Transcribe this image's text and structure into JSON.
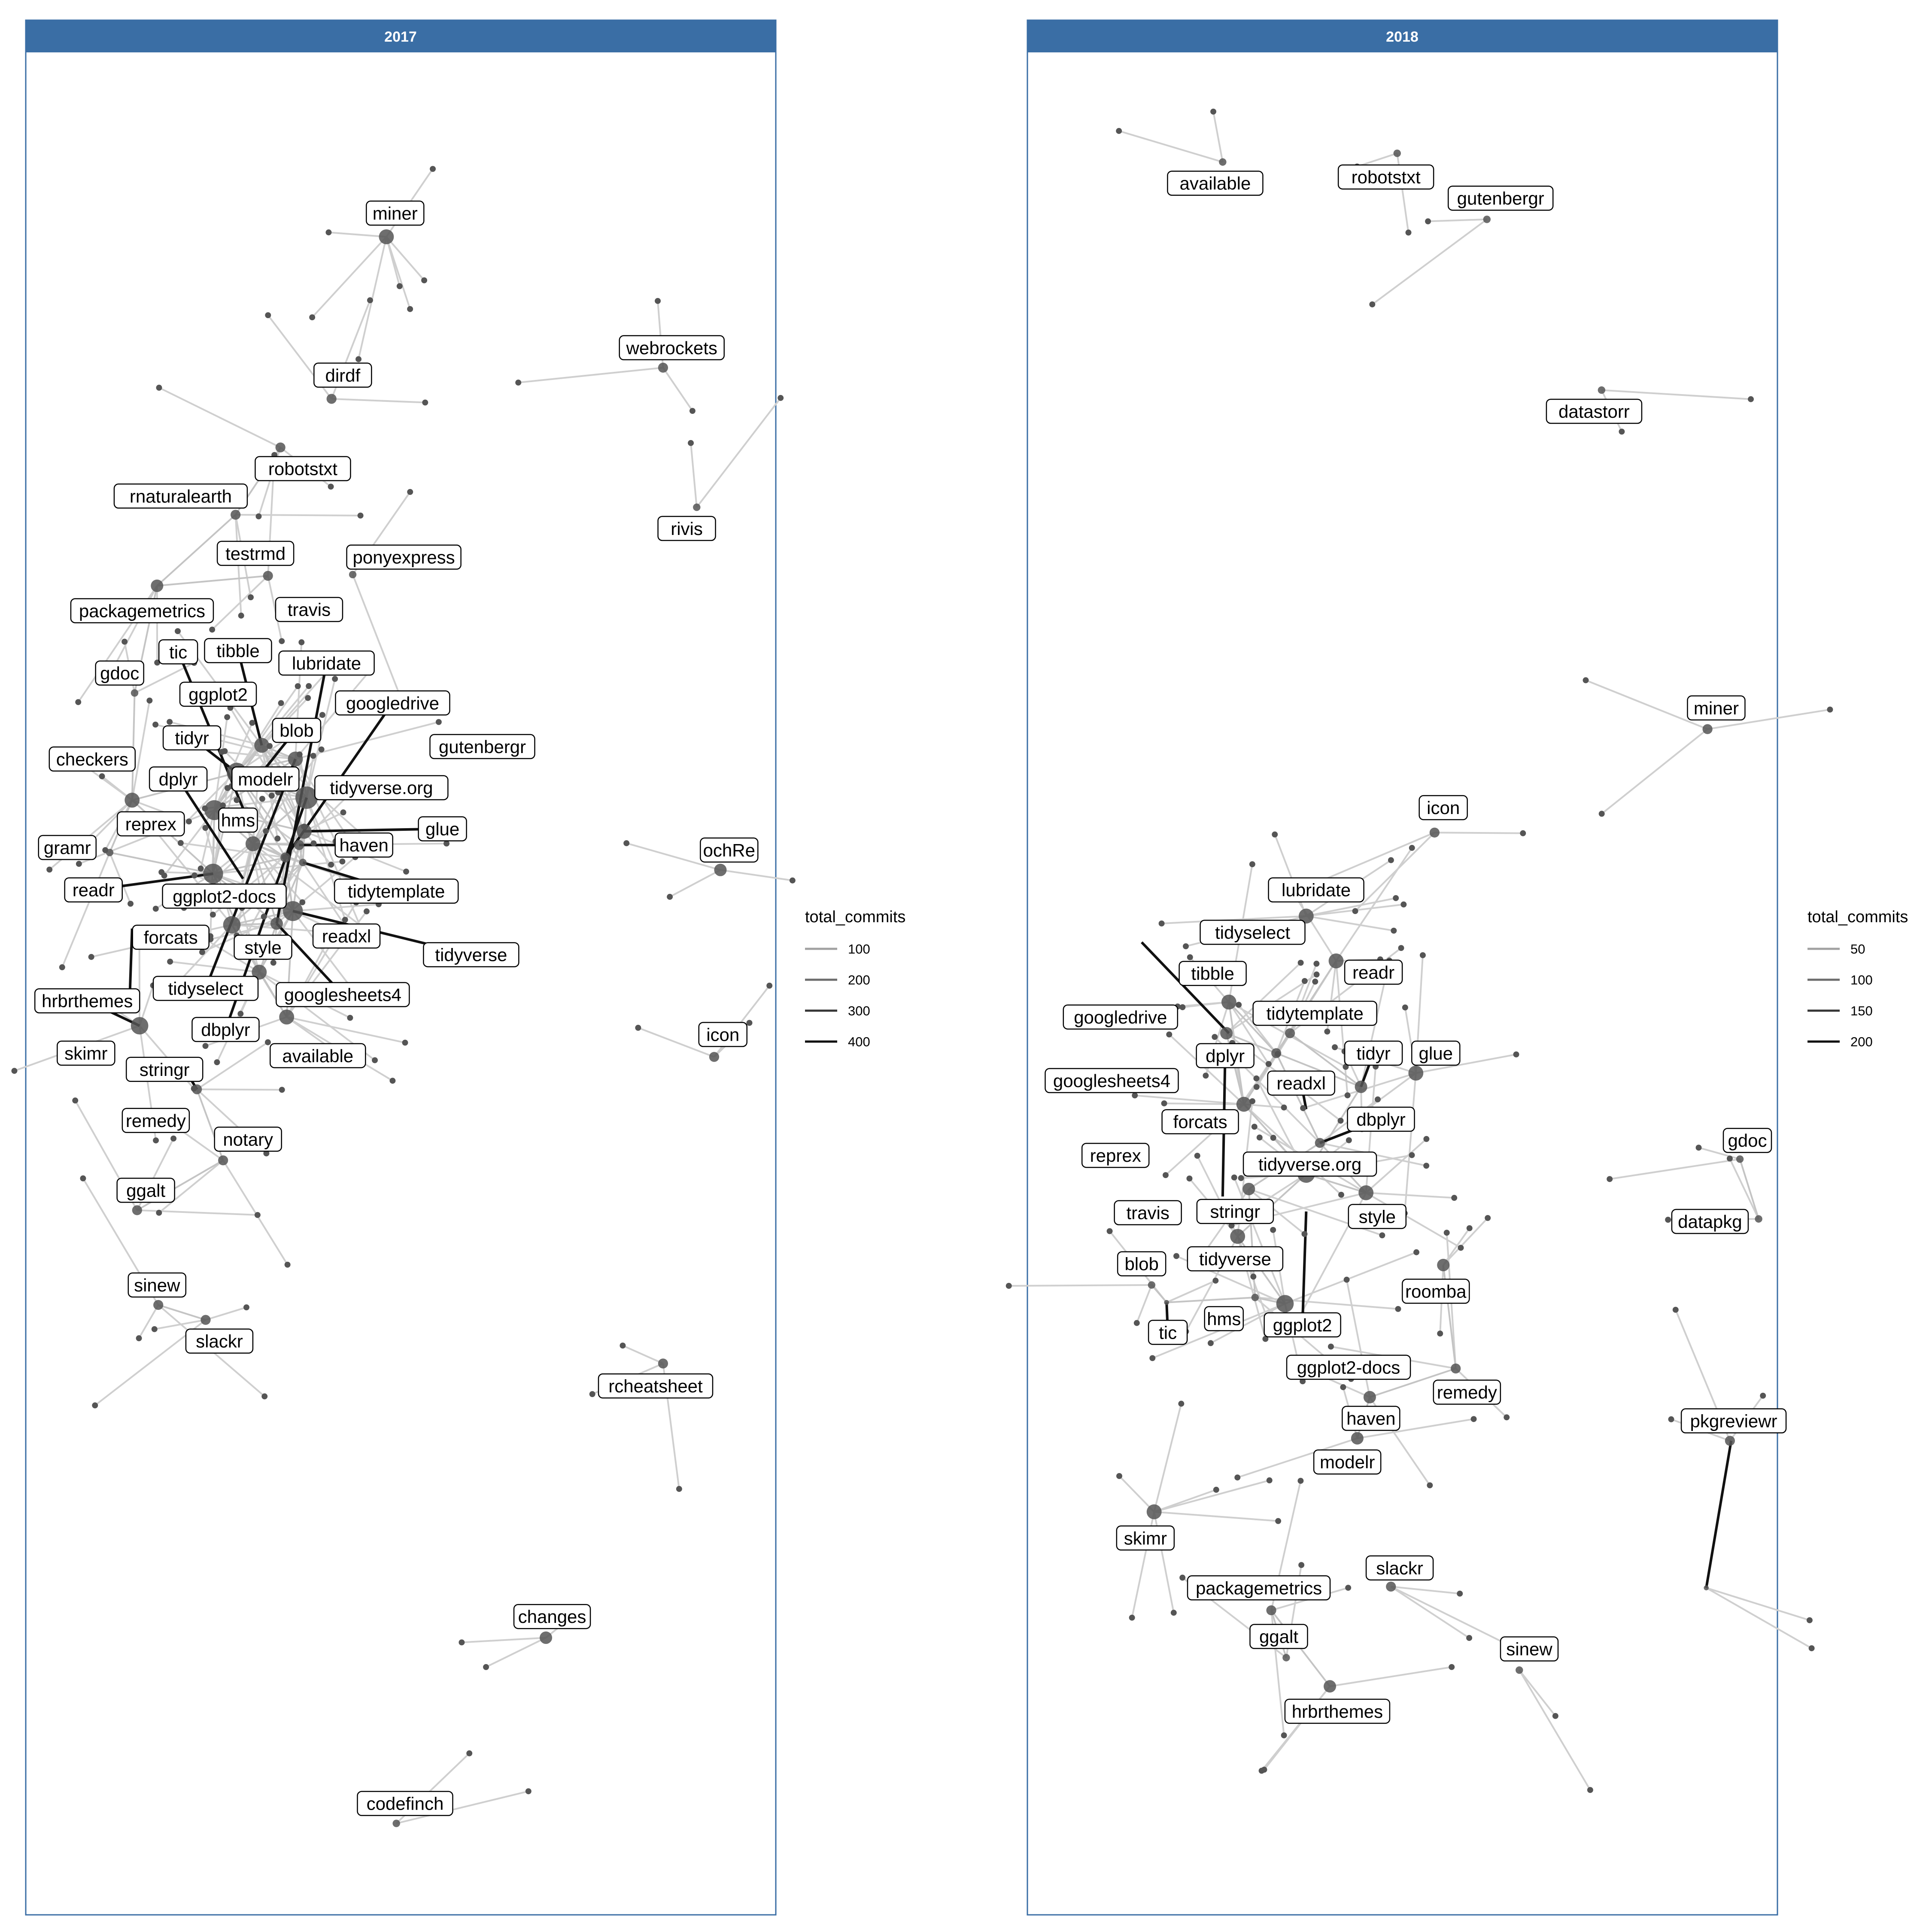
{
  "colors": {
    "strip": "#3a6ea5",
    "panel_border": "#3a6ea5",
    "node": "#555555",
    "label_bg": "#ffffff",
    "label_border": "#000000"
  },
  "panels": [
    {
      "title": "2017",
      "legend": {
        "title": "total_commits",
        "keys": [
          {
            "label": "100",
            "value": 100
          },
          {
            "label": "200",
            "value": 200
          },
          {
            "label": "300",
            "value": 300
          },
          {
            "label": "400",
            "value": 400
          }
        ]
      },
      "labels": [
        "miner",
        "dirdf",
        "robotstxt",
        "rnaturalearth",
        "testrmd",
        "ponyexpress",
        "packagemetrics",
        "travis",
        "gdoc",
        "tic",
        "tibble",
        "lubridate",
        "ggplot2",
        "googledrive",
        "blob",
        "tidyr",
        "gutenbergr",
        "checkers",
        "dplyr",
        "modelr",
        "tidyverse.org",
        "reprex",
        "hms",
        "glue",
        "gramr",
        "haven",
        "readr",
        "ggplot2-docs",
        "tidytemplate",
        "forcats",
        "readxl",
        "tidyverse",
        "style",
        "hrbrthemes",
        "tidyselect",
        "googlesheets4",
        "dbplyr",
        "skimr",
        "available",
        "stringr",
        "remedy",
        "notary",
        "ggalt",
        "sinew",
        "slackr",
        "webrockets",
        "rivis",
        "ochRe",
        "icon",
        "rcheatsheet",
        "changes",
        "codefinch"
      ]
    },
    {
      "title": "2018",
      "legend": {
        "title": "total_commits",
        "keys": [
          {
            "label": "50",
            "value": 50
          },
          {
            "label": "100",
            "value": 100
          },
          {
            "label": "150",
            "value": 150
          },
          {
            "label": "200",
            "value": 200
          }
        ]
      },
      "labels": [
        "available",
        "robotstxt",
        "gutenbergr",
        "datastorr",
        "miner",
        "icon",
        "lubridate",
        "tidyselect",
        "readr",
        "tibble",
        "tidytemplate",
        "googledrive",
        "tidyr",
        "glue",
        "dplyr",
        "googlesheets4",
        "readxl",
        "dbplyr",
        "forcats",
        "reprex",
        "tidyverse.org",
        "travis",
        "stringr",
        "style",
        "blob",
        "tidyverse",
        "roomba",
        "hms",
        "ggplot2",
        "tic",
        "ggplot2-docs",
        "remedy",
        "haven",
        "modelr",
        "skimr",
        "slackr",
        "packagemetrics",
        "ggalt",
        "sinew",
        "hrbrthemes",
        "gdoc",
        "datapkg",
        "pkgreviewr"
      ]
    }
  ]
}
